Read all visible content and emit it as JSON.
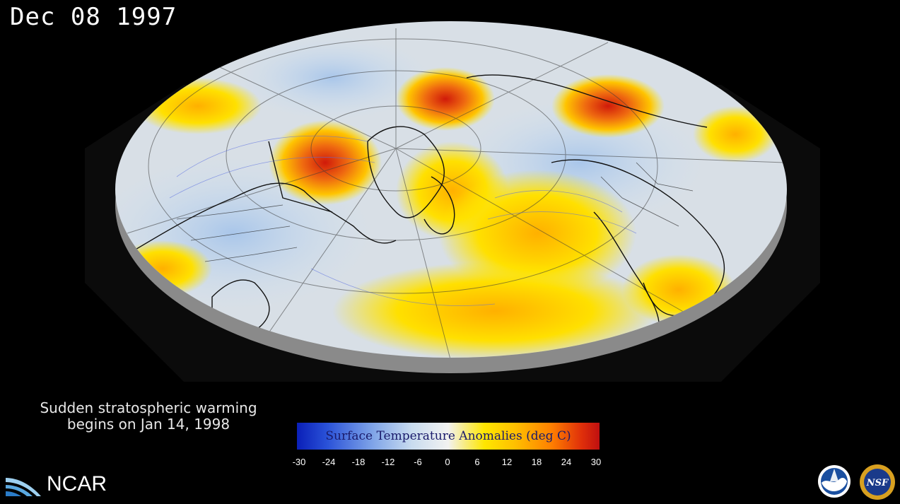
{
  "date": "Dec 08 1997",
  "caption": {
    "line1": "Sudden stratospheric warming",
    "line2": "begins on Jan 14, 1998"
  },
  "colorbar": {
    "title": "Surface Temperature Anomalies (deg C)",
    "ticks": [
      "-30",
      "-24",
      "-18",
      "-12",
      "-6",
      "0",
      "6",
      "12",
      "18",
      "24",
      "30"
    ],
    "colors": {
      "min": "#0a1fb8",
      "mid": "#f2f2f0",
      "warm": "#ffe600",
      "max": "#c01010"
    }
  },
  "logos": {
    "ncar": "NCAR",
    "noaa": "NOAA",
    "nsf": "NSF"
  }
}
